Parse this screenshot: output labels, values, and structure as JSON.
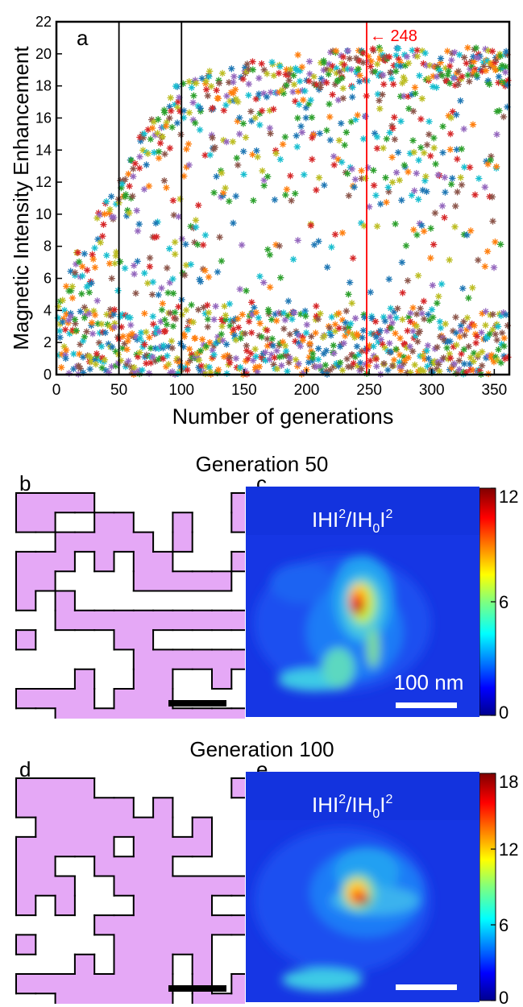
{
  "chart_data": [
    {
      "panel": "a",
      "type": "scatter",
      "xlabel": "Number of generations",
      "ylabel": "Magnetic Intensity Enhancement",
      "xlim": [
        0,
        362
      ],
      "ylim": [
        0,
        22
      ],
      "xticks": [
        0,
        50,
        100,
        150,
        200,
        250,
        300,
        350
      ],
      "yticks": [
        0,
        2,
        4,
        6,
        8,
        10,
        12,
        14,
        16,
        18,
        20,
        22
      ],
      "grid": false,
      "marker": "asterisk",
      "series_colors": [
        "#d62728",
        "#1f77b4",
        "#2ca02c",
        "#ff7f0e",
        "#9467bd",
        "#17becf",
        "#bcbd22",
        "#8c564b"
      ],
      "vertical_lines": [
        {
          "x": 50,
          "color": "#000000"
        },
        {
          "x": 100,
          "color": "#000000"
        },
        {
          "x": 248,
          "color": "#ff0000",
          "label": "248"
        }
      ],
      "envelope_upper": [
        [
          0,
          4
        ],
        [
          10,
          7
        ],
        [
          25,
          9
        ],
        [
          50,
          12.5
        ],
        [
          75,
          16
        ],
        [
          100,
          18.5
        ],
        [
          150,
          19.5
        ],
        [
          200,
          20.2
        ],
        [
          250,
          20.4
        ],
        [
          300,
          20.4
        ],
        [
          362,
          20.4
        ]
      ]
    },
    {
      "panel": "c",
      "type": "heatmap",
      "label": "IHI²/IH₀I²",
      "colorbar_ticks": [
        0,
        6,
        12
      ],
      "colorbar_max": 12,
      "scalebar": "100 nm"
    },
    {
      "panel": "e",
      "type": "heatmap",
      "label": "IHI²/IH₀I²",
      "colorbar_ticks": [
        0,
        6,
        12,
        18
      ],
      "colorbar_max": 18
    }
  ],
  "panels": {
    "a": "a",
    "b": "b",
    "c": "c",
    "d": "d",
    "e": "e",
    "arrow_label": "← 248",
    "gen50_title": "Generation 50",
    "gen100_title": "Generation 100",
    "heat_label_main": "IHI",
    "heat_label_sup": "2",
    "heat_label_mid": "/IH",
    "heat_label_sub": "0",
    "heat_label_end": "I",
    "scalebar_c": "100 nm"
  },
  "colors": {
    "structure_fill": "#e5a8f6",
    "structure_stroke": "#000000",
    "heat_background": "#1030e0",
    "red_line": "#ff0000"
  }
}
